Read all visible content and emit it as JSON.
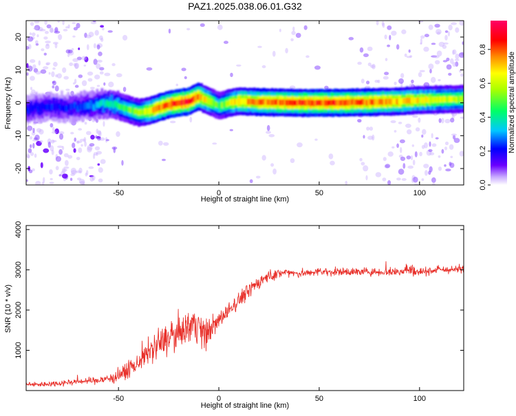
{
  "title": "PAZ1.2025.038.06.01.G32",
  "colors": {
    "snr_line": "#e8302a",
    "ridge_core": "#ff2a00",
    "ridge_mid": "#33ff33",
    "ridge_edge": "#3a37ff",
    "noise": "#7d2bff"
  },
  "chart_data": [
    {
      "id": "spectrogram",
      "type": "heatmap",
      "xlabel": "Height of straight line (km)",
      "ylabel": "Frequency (Hz)",
      "xlim": [
        -96,
        122
      ],
      "ylim": [
        -25,
        25
      ],
      "xticks": [
        -50,
        0,
        50,
        100
      ],
      "xtick_labels": [
        "-50",
        "0",
        "50",
        "100"
      ],
      "yticks": [
        -20,
        -10,
        0,
        10,
        20
      ],
      "ytick_labels": [
        "-20",
        "-10",
        "0",
        "10",
        "20"
      ],
      "colorbar": {
        "label": "Normalized spectral amplitude",
        "range": [
          0,
          0.97
        ],
        "ticks": [
          0.0,
          0.2,
          0.4,
          0.6,
          0.8
        ],
        "tick_labels": [
          "0.0",
          "0.2",
          "0.4",
          "0.6",
          "0.8"
        ],
        "colormap": [
          "#ffffff",
          "#c7a8ff",
          "#6a00ff",
          "#0000ff",
          "#00c8ff",
          "#00ff66",
          "#aaff00",
          "#ffff00",
          "#ff8c00",
          "#ff0000",
          "#ff0066"
        ]
      },
      "ridge": {
        "x": [
          -96,
          -85,
          -75,
          -65,
          -55,
          -48,
          -40,
          -35,
          -30,
          -25,
          -20,
          -15,
          -10,
          -7,
          -3,
          0,
          5,
          10,
          20,
          40,
          60,
          80,
          90,
          100,
          122
        ],
        "frequency": [
          -2,
          -1,
          -1.5,
          -1,
          0,
          -1.5,
          -3,
          -2.5,
          -1.5,
          -0.5,
          0,
          0.5,
          2,
          1,
          0,
          -1,
          0,
          0.5,
          0.2,
          0,
          0,
          0.3,
          0.5,
          0.8,
          1.2
        ],
        "amplitude": [
          0.3,
          0.3,
          0.3,
          0.35,
          0.45,
          0.5,
          0.6,
          0.7,
          0.8,
          0.85,
          0.9,
          0.9,
          0.8,
          0.7,
          0.6,
          0.5,
          0.65,
          0.75,
          0.8,
          0.85,
          0.85,
          0.8,
          0.75,
          0.7,
          0.6
        ]
      }
    },
    {
      "id": "snr",
      "type": "line",
      "xlabel": "Height of straight line (km)",
      "ylabel": "SNR (10 * v/v)",
      "xlim": [
        -96,
        122
      ],
      "ylim": [
        0,
        4100
      ],
      "xticks": [
        -50,
        0,
        50,
        100
      ],
      "xtick_labels": [
        "-50",
        "0",
        "50",
        "100"
      ],
      "yticks": [
        1000,
        2000,
        3000,
        4000
      ],
      "ytick_labels": [
        "1000",
        "2000",
        "3000",
        "4000"
      ],
      "series": [
        {
          "x": [
            -96,
            -90,
            -80,
            -70,
            -60,
            -55,
            -50,
            -45,
            -40,
            -35,
            -30,
            -25,
            -20,
            -15,
            -12,
            -10,
            -8,
            -5,
            -2,
            0,
            5,
            10,
            15,
            20,
            25,
            30,
            35,
            40,
            50,
            60,
            70,
            80,
            90,
            93,
            95,
            100,
            110,
            120,
            122
          ],
          "y": [
            150,
            150,
            180,
            230,
            250,
            300,
            380,
            500,
            700,
            950,
            1150,
            1300,
            1450,
            1600,
            1700,
            1650,
            1400,
            1500,
            1650,
            1750,
            2000,
            2250,
            2500,
            2700,
            2850,
            2900,
            2950,
            2900,
            2950,
            2950,
            2950,
            2950,
            2950,
            3000,
            3000,
            2950,
            3000,
            3000,
            3050
          ],
          "noise": [
            60,
            60,
            70,
            80,
            90,
            120,
            150,
            180,
            220,
            320,
            380,
            380,
            400,
            400,
            500,
            450,
            350,
            300,
            250,
            200,
            200,
            200,
            180,
            160,
            140,
            120,
            100,
            100,
            100,
            100,
            100,
            100,
            110,
            180,
            150,
            100,
            90,
            90,
            90
          ]
        }
      ]
    }
  ]
}
